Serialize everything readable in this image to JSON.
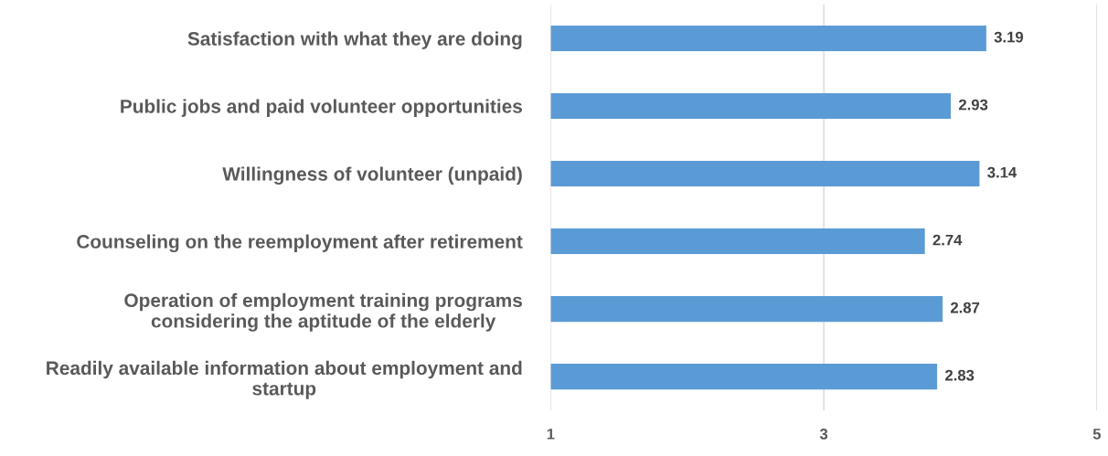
{
  "chart_data": {
    "type": "bar",
    "orientation": "horizontal",
    "categories": [
      "Satisfaction with what they are doing",
      "Public jobs and paid volunteer opportunities",
      "Willingness of volunteer (unpaid)",
      "Counseling on the reemployment after retirement",
      "Operation of employment training programs\nconsidering the aptitude of the elderly",
      "Readily available information about employment and\nstartup"
    ],
    "values": [
      3.19,
      2.93,
      3.14,
      2.74,
      2.87,
      2.83
    ],
    "color": "#5b9bd5",
    "base": [
      1,
      1,
      1,
      1,
      1,
      1
    ],
    "xlim": [
      1,
      5
    ],
    "xticks": [
      1,
      3,
      5
    ],
    "grid": "x",
    "data_labels": true
  }
}
